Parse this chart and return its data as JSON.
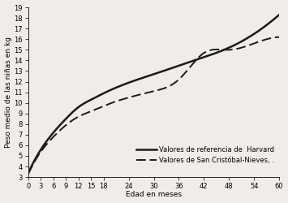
{
  "title": "",
  "xlabel": "Edad en meses",
  "ylabel": "Peso medio de las niñas en kg",
  "xlim": [
    0,
    60
  ],
  "ylim": [
    3,
    19
  ],
  "xticks": [
    0,
    3,
    6,
    9,
    12,
    15,
    18,
    24,
    30,
    36,
    42,
    48,
    54,
    60
  ],
  "yticks": [
    3,
    4,
    5,
    6,
    7,
    8,
    9,
    10,
    11,
    12,
    13,
    14,
    15,
    16,
    17,
    18,
    19
  ],
  "harvard_ages": [
    0,
    3,
    6,
    9,
    12,
    15,
    18,
    24,
    30,
    36,
    42,
    48,
    54,
    60
  ],
  "harvard_weight": [
    3.4,
    5.6,
    7.2,
    8.5,
    9.6,
    10.3,
    10.9,
    11.9,
    12.7,
    13.5,
    14.3,
    15.2,
    16.5,
    18.3
  ],
  "sc_ages": [
    0,
    3,
    6,
    9,
    12,
    15,
    18,
    24,
    30,
    36,
    42,
    48,
    54,
    60
  ],
  "sc_weight": [
    3.3,
    5.4,
    6.8,
    7.9,
    8.7,
    9.2,
    9.7,
    10.5,
    11.1,
    12.2,
    14.7,
    15.0,
    15.6,
    16.2
  ],
  "legend_harvard": "Valores de referencia de  Harvard",
  "legend_sc": "Valores de San Cristóbal-Nieves, .",
  "line_color": "#1a1a1a",
  "bg_color": "#f0ede8",
  "fontsize_labels": 6.5,
  "fontsize_ticks": 6,
  "fontsize_legend": 6
}
